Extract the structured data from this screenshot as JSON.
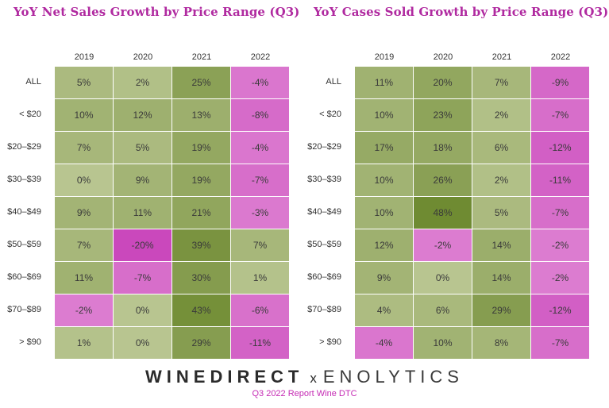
{
  "chart_data": [
    {
      "type": "heatmap",
      "title": "YoY Net Sales Growth by Price Range (Q3)",
      "columns": [
        "2019",
        "2020",
        "2021",
        "2022"
      ],
      "rows": [
        "ALL",
        "< $20",
        "$20–$29",
        "$30–$39",
        "$40–$49",
        "$50–$59",
        "$60–$69",
        "$70–$89",
        "> $90"
      ],
      "values": [
        [
          5,
          2,
          25,
          -4
        ],
        [
          10,
          12,
          13,
          -8
        ],
        [
          7,
          5,
          19,
          -4
        ],
        [
          0,
          9,
          19,
          -7
        ],
        [
          9,
          11,
          21,
          -3
        ],
        [
          7,
          -20,
          39,
          7
        ],
        [
          11,
          -7,
          30,
          1
        ],
        [
          -2,
          0,
          43,
          -6
        ],
        [
          1,
          0,
          29,
          -11
        ]
      ],
      "unit": "%"
    },
    {
      "type": "heatmap",
      "title": "YoY Cases Sold Growth by Price Range (Q3)",
      "columns": [
        "2019",
        "2020",
        "2021",
        "2022"
      ],
      "rows": [
        "ALL",
        "< $20",
        "$20–$29",
        "$30–$39",
        "$40–$49",
        "$50–$59",
        "$60–$69",
        "$70–$89",
        "> $90"
      ],
      "values": [
        [
          11,
          20,
          7,
          -9
        ],
        [
          10,
          23,
          2,
          -7
        ],
        [
          17,
          18,
          6,
          -12
        ],
        [
          10,
          26,
          2,
          -11
        ],
        [
          10,
          48,
          5,
          -7
        ],
        [
          12,
          -2,
          14,
          -2
        ],
        [
          9,
          0,
          14,
          -2
        ],
        [
          4,
          6,
          29,
          -12
        ],
        [
          -4,
          10,
          8,
          -7
        ]
      ],
      "unit": "%"
    }
  ],
  "footer": {
    "logo_left": "WINEDIRECT",
    "separator": "x",
    "logo_right": "ENOLYTICS",
    "subtitle": "Q3 2022 Report Wine DTC"
  },
  "colors": {
    "title": "#b02aa0",
    "subtitle": "#c52bb4",
    "neg_light": "#de82d2",
    "neg_dark": "#ca48bc",
    "pos_light": "#b8c590",
    "pos_dark": "#6f8b32"
  }
}
